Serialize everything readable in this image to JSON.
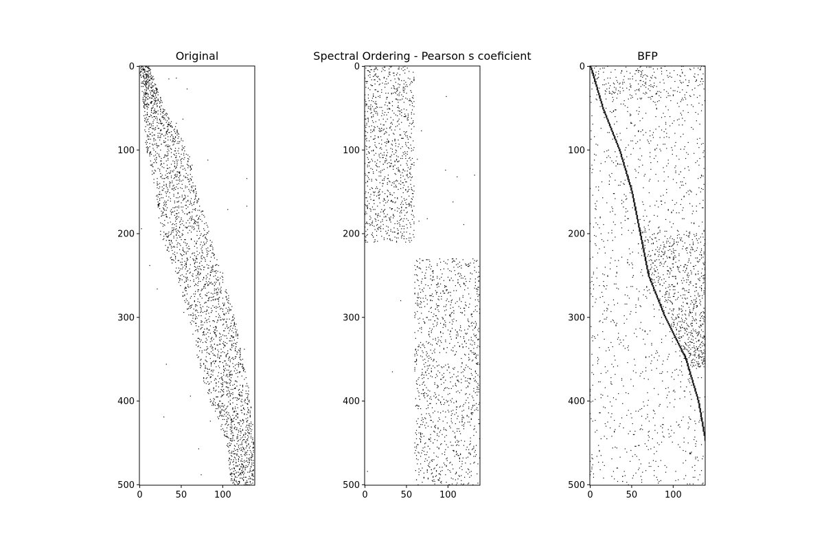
{
  "chart_data": [
    {
      "type": "heatmap",
      "title": "Original",
      "xlim": [
        0,
        139
      ],
      "ylim": [
        501,
        0
      ],
      "xticks": [
        "0",
        "50",
        "100"
      ],
      "yticks": [
        "0",
        "100",
        "200",
        "300",
        "400",
        "500"
      ],
      "pattern": "diagonal band",
      "band": [
        [
          0,
          0,
          12
        ],
        [
          50,
          5,
          30
        ],
        [
          100,
          8,
          60
        ],
        [
          150,
          20,
          70
        ],
        [
          200,
          25,
          85
        ],
        [
          250,
          45,
          100
        ],
        [
          300,
          60,
          115
        ],
        [
          350,
          70,
          125
        ],
        [
          400,
          85,
          135
        ],
        [
          450,
          105,
          138
        ],
        [
          500,
          110,
          138
        ]
      ]
    },
    {
      "type": "heatmap",
      "title": "Spectral Ordering - Pearson s coeficient",
      "xlim": [
        0,
        139
      ],
      "ylim": [
        501,
        0
      ],
      "xticks": [
        "0",
        "50",
        "100"
      ],
      "yticks": [
        "0",
        "100",
        "200",
        "300",
        "400",
        "500"
      ],
      "pattern": "two blocks",
      "blocks": [
        [
          0,
          210,
          0,
          60
        ],
        [
          230,
          501,
          60,
          139
        ]
      ]
    },
    {
      "type": "heatmap",
      "title": "BFP",
      "xlim": [
        0,
        139
      ],
      "ylim": [
        501,
        0
      ],
      "xticks": [
        "0",
        "50",
        "100"
      ],
      "yticks": [
        "0",
        "100",
        "200",
        "300",
        "400",
        "500"
      ],
      "pattern": "diagonal line with scatter",
      "line": [
        [
          0,
          0
        ],
        [
          50,
          15
        ],
        [
          100,
          35
        ],
        [
          150,
          50
        ],
        [
          200,
          60
        ],
        [
          250,
          70
        ],
        [
          300,
          90
        ],
        [
          350,
          115
        ],
        [
          400,
          130
        ],
        [
          450,
          139
        ],
        [
          501,
          139
        ]
      ]
    }
  ]
}
